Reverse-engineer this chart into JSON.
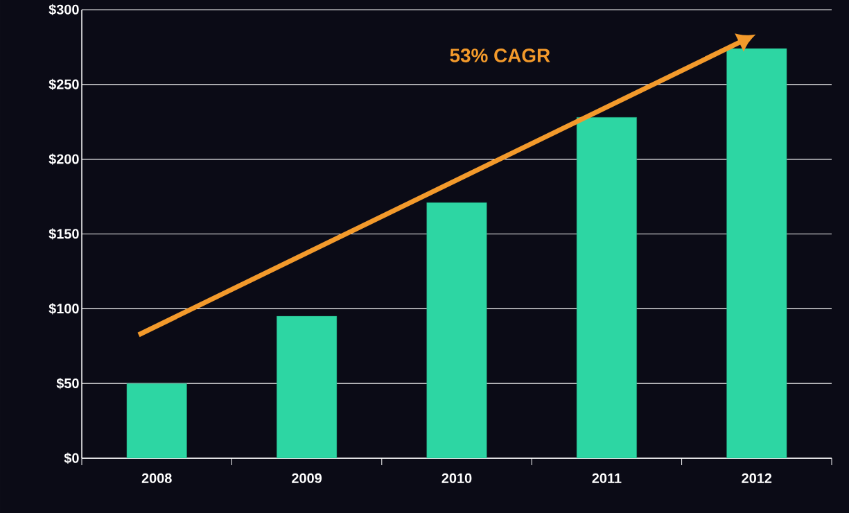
{
  "chart_data": {
    "type": "bar",
    "categories": [
      "2008",
      "2009",
      "2010",
      "2011",
      "2012"
    ],
    "values": [
      50,
      95,
      171,
      228,
      274
    ],
    "color": "#2dd6a3",
    "ylim": [
      0,
      300
    ],
    "yticks": [
      {
        "value": 0,
        "label": "$0"
      },
      {
        "value": 50,
        "label": "$50"
      },
      {
        "value": 100,
        "label": "$100"
      },
      {
        "value": 150,
        "label": "$150"
      },
      {
        "value": 200,
        "label": "$200"
      },
      {
        "value": 250,
        "label": "$250"
      },
      {
        "value": 300,
        "label": "$300"
      }
    ],
    "grid": "y",
    "annotations": [
      "53% CAGR"
    ]
  }
}
